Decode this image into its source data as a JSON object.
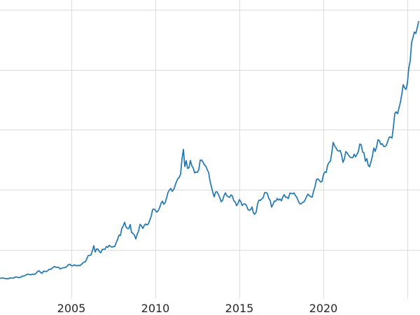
{
  "chart_data": {
    "type": "line",
    "title": "",
    "xlabel": "",
    "ylabel": "",
    "grid": true,
    "legend": false,
    "line_color": "#1f77b4",
    "grid_color": "#dcdcdc",
    "background_color": "#ffffff",
    "xlim": [
      2000.75,
      2025.75
    ],
    "ylim": [
      0,
      3750
    ],
    "x_tick_values": [
      2005,
      2010,
      2015,
      2020
    ],
    "x_tick_labels": [
      "2005",
      "2010",
      "2015",
      "2020"
    ],
    "x_gridline_values": [
      2005,
      2010,
      2015,
      2020,
      2025
    ],
    "x_start": 2000.75,
    "x_step_years": 0.0833333,
    "values": [
      270,
      266,
      272,
      266,
      262,
      263,
      260,
      272,
      270,
      268,
      272,
      284,
      283,
      276,
      276,
      281,
      295,
      294,
      302,
      314,
      321,
      313,
      310,
      319,
      316,
      319,
      333,
      356,
      359,
      340,
      328,
      355,
      356,
      351,
      359,
      379,
      378,
      389,
      406,
      414,
      405,
      406,
      403,
      383,
      392,
      398,
      400,
      405,
      420,
      439,
      442,
      424,
      423,
      434,
      429,
      421,
      430,
      424,
      437,
      456,
      470,
      476,
      510,
      550,
      555,
      557,
      611,
      675,
      596,
      634,
      632,
      598,
      586,
      627,
      629,
      631,
      665,
      655,
      679,
      667,
      655,
      665,
      665,
      713,
      754,
      806,
      803,
      890,
      922,
      968,
      910,
      889,
      889,
      940,
      839,
      829,
      807,
      760,
      820,
      858,
      943,
      924,
      890,
      928,
      946,
      934,
      949,
      996,
      1043,
      1127,
      1135,
      1118,
      1095,
      1113,
      1149,
      1205,
      1232,
      1193,
      1215,
      1271,
      1342,
      1370,
      1391,
      1356,
      1373,
      1424,
      1474,
      1512,
      1529,
      1573,
      1760,
      1880,
      1666,
      1739,
      1641,
      1652,
      1742,
      1674,
      1650,
      1586,
      1597,
      1593,
      1626,
      1745,
      1747,
      1722,
      1685,
      1671,
      1628,
      1593,
      1485,
      1414,
      1343,
      1286,
      1347,
      1349,
      1316,
      1276,
      1225,
      1244,
      1301,
      1336,
      1299,
      1288,
      1279,
      1311,
      1296,
      1238,
      1222,
      1176,
      1202,
      1251,
      1227,
      1178,
      1198,
      1198,
      1181,
      1130,
      1118,
      1125,
      1159,
      1086,
      1068,
      1097,
      1200,
      1246,
      1242,
      1260,
      1276,
      1337,
      1340,
      1327,
      1266,
      1238,
      1157,
      1192,
      1234,
      1231,
      1266,
      1246,
      1260,
      1236,
      1283,
      1314,
      1280,
      1282,
      1264,
      1331,
      1330,
      1325,
      1335,
      1303,
      1281,
      1238,
      1201,
      1198,
      1215,
      1221,
      1250,
      1291,
      1320,
      1301,
      1286,
      1284,
      1359,
      1413,
      1500,
      1511,
      1495,
      1471,
      1479,
      1561,
      1597,
      1592,
      1683,
      1716,
      1732,
      1840,
      1969,
      1922,
      1900,
      1866,
      1858,
      1867,
      1808,
      1718,
      1762,
      1853,
      1835,
      1807,
      1784,
      1777,
      1777,
      1820,
      1787,
      1817,
      1856,
      1948,
      1937,
      1848,
      1836,
      1733,
      1765,
      1681,
      1664,
      1726,
      1797,
      1898,
      1855,
      1913,
      2000,
      1990,
      1943,
      1951,
      1919,
      1916,
      1934,
      1984,
      2034,
      2034,
      2023,
      2160,
      2330,
      2351,
      2327,
      2398,
      2470,
      2570,
      2690,
      2650,
      2630,
      2710,
      2900,
      2985,
      3220,
      3280,
      3350,
      3330,
      3400,
      3480
    ]
  }
}
